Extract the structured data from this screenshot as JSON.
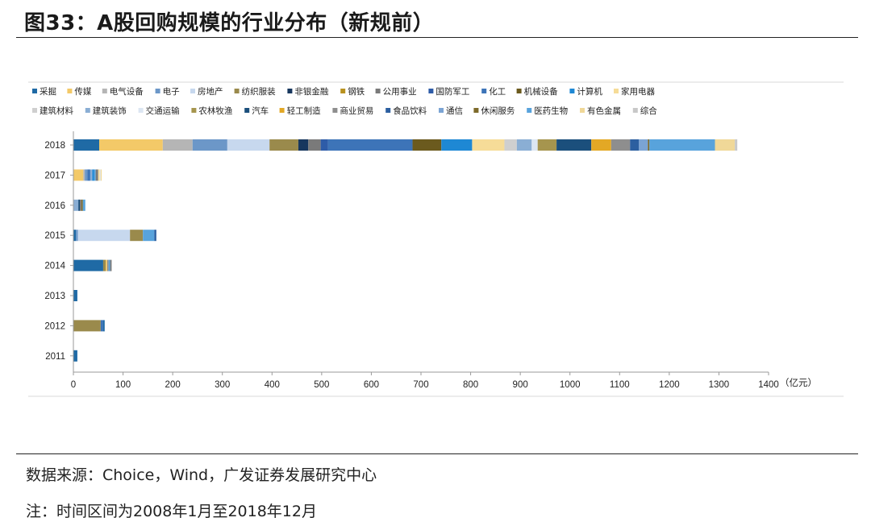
{
  "figure": {
    "title": "图33：A股回购规模的行业分布（新规前）",
    "source": "数据来源：Choice，Wind，广发证券发展研究中心",
    "note": "注：时间区间为2008年1月至2018年12月"
  },
  "chart_data": {
    "type": "bar",
    "orientation": "horizontal",
    "stacked": true,
    "title": "",
    "xlabel": "（亿元）",
    "ylabel": "",
    "xlim": [
      0,
      1400
    ],
    "x_ticks": [
      0,
      100,
      200,
      300,
      400,
      500,
      600,
      700,
      800,
      900,
      1000,
      1100,
      1200,
      1300,
      1400
    ],
    "grid": false,
    "legend_position": "top",
    "categories": [
      "2018",
      "2017",
      "2016",
      "2015",
      "2014",
      "2013",
      "2012",
      "2011"
    ],
    "series": [
      {
        "name": "采掘",
        "color": "#1f6aa5",
        "values": [
          52,
          0,
          0,
          5,
          60,
          8,
          3,
          8
        ]
      },
      {
        "name": "传媒",
        "color": "#f3c968",
        "values": [
          128,
          20,
          0,
          0,
          3,
          0,
          0,
          0
        ]
      },
      {
        "name": "电气设备",
        "color": "#b5b5b5",
        "values": [
          60,
          3,
          0,
          0,
          0,
          0,
          0,
          0
        ]
      },
      {
        "name": "电子",
        "color": "#6c97c8",
        "values": [
          70,
          5,
          0,
          4,
          0,
          0,
          0,
          0
        ]
      },
      {
        "name": "房地产",
        "color": "#c7d8ee",
        "values": [
          85,
          0,
          0,
          105,
          0,
          0,
          0,
          0
        ]
      },
      {
        "name": "纺织服装",
        "color": "#9a8a4c",
        "values": [
          58,
          0,
          0,
          26,
          5,
          0,
          55,
          0
        ]
      },
      {
        "name": "非银金融",
        "color": "#17375e",
        "values": [
          20,
          0,
          0,
          0,
          0,
          0,
          0,
          0
        ]
      },
      {
        "name": "钢铁",
        "color": "#b8911f",
        "values": [
          0,
          0,
          0,
          0,
          0,
          0,
          0,
          0
        ]
      },
      {
        "name": "公用事业",
        "color": "#7a7a7a",
        "values": [
          25,
          5,
          3,
          0,
          3,
          0,
          0,
          0
        ]
      },
      {
        "name": "国防军工",
        "color": "#2e5ca8",
        "values": [
          15,
          0,
          0,
          0,
          0,
          0,
          0,
          0
        ]
      },
      {
        "name": "化工",
        "color": "#3d74b8",
        "values": [
          170,
          6,
          0,
          0,
          0,
          0,
          5,
          0
        ]
      },
      {
        "name": "机械设备",
        "color": "#6b5a1e",
        "values": [
          58,
          0,
          0,
          0,
          0,
          0,
          0,
          0
        ]
      },
      {
        "name": "计算机",
        "color": "#1e88d4",
        "values": [
          62,
          4,
          0,
          0,
          0,
          0,
          0,
          0
        ]
      },
      {
        "name": "家用电器",
        "color": "#f6dc98",
        "values": [
          65,
          3,
          0,
          0,
          0,
          0,
          0,
          0
        ]
      },
      {
        "name": "建筑材料",
        "color": "#cfcfcf",
        "values": [
          25,
          0,
          0,
          0,
          0,
          0,
          0,
          0
        ]
      },
      {
        "name": "建筑装饰",
        "color": "#8aaed4",
        "values": [
          30,
          4,
          10,
          0,
          0,
          0,
          0,
          0
        ]
      },
      {
        "name": "交通运输",
        "color": "#dce6f2",
        "values": [
          12,
          2,
          0,
          0,
          0,
          0,
          0,
          0
        ]
      },
      {
        "name": "农林牧渔",
        "color": "#a6954e",
        "values": [
          38,
          0,
          0,
          0,
          0,
          0,
          0,
          0
        ]
      },
      {
        "name": "汽车",
        "color": "#1b4f7c",
        "values": [
          70,
          0,
          3,
          0,
          0,
          0,
          0,
          0
        ]
      },
      {
        "name": "轻工制造",
        "color": "#e3a825",
        "values": [
          40,
          0,
          0,
          0,
          0,
          0,
          0,
          0
        ]
      },
      {
        "name": "商业贸易",
        "color": "#8e8e8e",
        "values": [
          38,
          0,
          0,
          0,
          3,
          0,
          0,
          0
        ]
      },
      {
        "name": "食品饮料",
        "color": "#2c5fa0",
        "values": [
          18,
          0,
          0,
          4,
          0,
          0,
          0,
          0
        ]
      },
      {
        "name": "通信",
        "color": "#7ba4d4",
        "values": [
          18,
          0,
          0,
          0,
          0,
          0,
          0,
          0
        ]
      },
      {
        "name": "休闲服务",
        "color": "#7d6a2a",
        "values": [
          3,
          0,
          3,
          0,
          0,
          0,
          0,
          0
        ]
      },
      {
        "name": "医药生物",
        "color": "#58a3dc",
        "values": [
          132,
          3,
          5,
          23,
          3,
          0,
          0,
          0
        ]
      },
      {
        "name": "有色金属",
        "color": "#f0d898",
        "values": [
          40,
          2,
          0,
          0,
          0,
          0,
          0,
          0
        ]
      },
      {
        "name": "综合",
        "color": "#c8c8c8",
        "values": [
          5,
          0,
          0,
          0,
          0,
          0,
          0,
          0
        ]
      }
    ],
    "segment_order": {
      "2018": [
        "采掘",
        "传媒",
        "电气设备",
        "电子",
        "房地产",
        "纺织服装",
        "非银金融",
        "公用事业",
        "国防军工",
        "化工",
        "机械设备",
        "计算机",
        "家用电器",
        "建筑材料",
        "建筑装饰",
        "交通运输",
        "农林牧渔",
        "汽车",
        "轻工制造",
        "商业贸易",
        "食品饮料",
        "通信",
        "休闲服务",
        "医药生物",
        "有色金属",
        "综合"
      ],
      "2017": [
        "传媒",
        "电气设备",
        "采掘",
        "电子",
        "汽车",
        "化工",
        "建筑装饰",
        "计算机",
        "医药生物",
        "公用事业",
        "家用电器",
        "交通运输",
        "有色金属"
      ],
      "2016": [
        "建筑装饰",
        "汽车",
        "公用事业",
        "休闲服务",
        "医药生物"
      ],
      "2015": [
        "采掘",
        "电子",
        "房地产",
        "纺织服装",
        "医药生物",
        "食品饮料"
      ],
      "2014": [
        "采掘",
        "纺织服装",
        "传媒",
        "商业贸易",
        "医药生物",
        "公用事业"
      ],
      "2013": [
        "采掘"
      ],
      "2012": [
        "纺织服装",
        "化工",
        "采掘"
      ],
      "2011": [
        "采掘"
      ]
    }
  }
}
